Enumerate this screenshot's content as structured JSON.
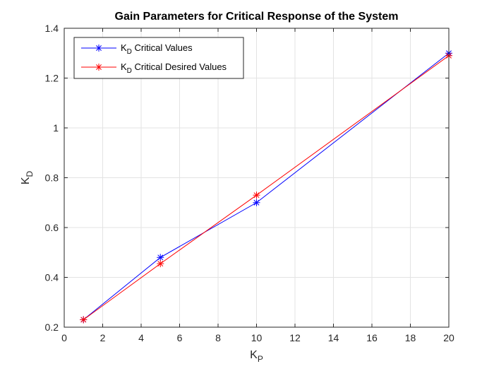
{
  "chart_data": {
    "type": "line",
    "title": "Gain Parameters for Critical Response of the System",
    "xlabel": {
      "main": "K",
      "sub": "P"
    },
    "ylabel": {
      "main": "K",
      "sub": "D"
    },
    "xlim": [
      0,
      20
    ],
    "ylim": [
      0.2,
      1.4
    ],
    "xticks": [
      0,
      2,
      4,
      6,
      8,
      10,
      12,
      14,
      16,
      18,
      20
    ],
    "yticks": [
      0.2,
      0.4,
      0.6,
      0.8,
      1.0,
      1.2,
      1.4
    ],
    "xtick_labels": [
      "0",
      "2",
      "4",
      "6",
      "8",
      "10",
      "12",
      "14",
      "16",
      "18",
      "20"
    ],
    "ytick_labels": [
      "0.2",
      "0.4",
      "0.6",
      "0.8",
      "1",
      "1.2",
      "1.4"
    ],
    "grid": true,
    "legend_position": "top-left",
    "series": [
      {
        "name": {
          "main": "K",
          "sub": "D",
          "rest": " Critical Values"
        },
        "color": "#0000ff",
        "marker": "asterisk",
        "x": [
          1,
          5,
          10,
          20
        ],
        "y": [
          0.23,
          0.48,
          0.7,
          1.3
        ]
      },
      {
        "name": {
          "main": "K",
          "sub": "D",
          "rest": " Critical Desired Values"
        },
        "color": "#ff0000",
        "marker": "asterisk",
        "x": [
          1,
          5,
          10,
          20
        ],
        "y": [
          0.23,
          0.455,
          0.73,
          1.29
        ]
      }
    ]
  }
}
